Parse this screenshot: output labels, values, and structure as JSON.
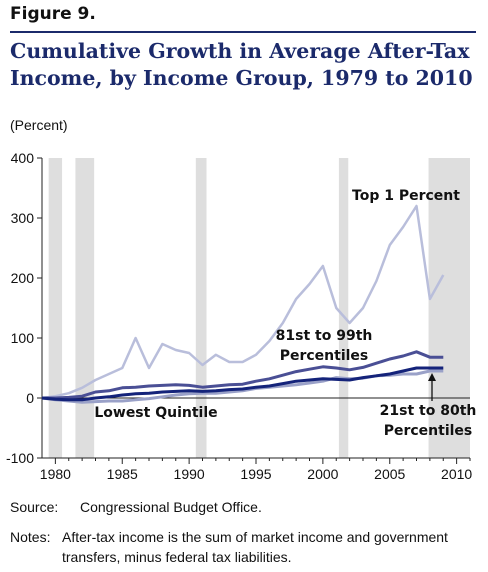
{
  "figure_label": "Figure 9.",
  "units_label": "(Percent)",
  "source_label": "Source:",
  "source_text": "Congressional Budget Office.",
  "notes_label": "Notes:",
  "notes_text": "After-tax income is the sum of market income and government transfers, minus federal tax liabilities.",
  "colors": {
    "title": "#1b2a6b",
    "recession_shading": "#dedede",
    "top1": "#b9bedb",
    "p81_99": "#4a4f95",
    "p21_80": "#14237a",
    "lowest": "#9aa1c8"
  },
  "chart_data": {
    "type": "line",
    "title": "Cumulative Growth in Average After-Tax Income, by Income Group, 1979 to 2010",
    "ylabel": "(Percent)",
    "xlim": [
      1979,
      2011
    ],
    "ylim": [
      -100,
      400
    ],
    "xticks": [
      1980,
      1985,
      1990,
      1995,
      2000,
      2005,
      2010
    ],
    "yticks": [
      -100,
      0,
      100,
      200,
      300,
      400
    ],
    "grid": false,
    "shaded_periods": [
      [
        1979.5,
        1980.5
      ],
      [
        1981.5,
        1982.9
      ],
      [
        1990.5,
        1991.3
      ],
      [
        2001.2,
        2001.9
      ],
      [
        2007.9,
        2011
      ]
    ],
    "series": [
      {
        "name": "Top 1 Percent",
        "x": [
          1979,
          1980,
          1981,
          1982,
          1983,
          1984,
          1985,
          1986,
          1987,
          1988,
          1989,
          1990,
          1991,
          1992,
          1993,
          1994,
          1995,
          1996,
          1997,
          1998,
          1999,
          2000,
          2001,
          2002,
          2003,
          2004,
          2005,
          2006,
          2007,
          2008,
          2009
        ],
        "values": [
          0,
          3,
          8,
          17,
          30,
          40,
          50,
          100,
          50,
          90,
          80,
          75,
          55,
          72,
          60,
          60,
          72,
          95,
          125,
          165,
          190,
          220,
          150,
          125,
          150,
          195,
          255,
          285,
          320,
          165,
          205
        ]
      },
      {
        "name": "81st to 99th Percentiles",
        "x": [
          1979,
          1980,
          1981,
          1982,
          1983,
          1984,
          1985,
          1986,
          1987,
          1988,
          1989,
          1990,
          1991,
          1992,
          1993,
          1994,
          1995,
          1996,
          1997,
          1998,
          1999,
          2000,
          2001,
          2002,
          2003,
          2004,
          2005,
          2006,
          2007,
          2008,
          2009
        ],
        "values": [
          0,
          0,
          1,
          3,
          10,
          12,
          17,
          18,
          20,
          21,
          22,
          21,
          18,
          20,
          22,
          23,
          28,
          32,
          38,
          44,
          48,
          52,
          50,
          47,
          51,
          58,
          65,
          70,
          77,
          68,
          68
        ]
      },
      {
        "name": "21st to 80th Percentiles",
        "x": [
          1979,
          1980,
          1981,
          1982,
          1983,
          1984,
          1985,
          1986,
          1987,
          1988,
          1989,
          1990,
          1991,
          1992,
          1993,
          1994,
          1995,
          1996,
          1997,
          1998,
          1999,
          2000,
          2001,
          2002,
          2003,
          2004,
          2005,
          2006,
          2007,
          2008,
          2009
        ],
        "values": [
          0,
          -2,
          -3,
          -3,
          0,
          2,
          5,
          7,
          8,
          10,
          11,
          12,
          11,
          12,
          14,
          15,
          18,
          20,
          24,
          28,
          30,
          32,
          31,
          30,
          34,
          37,
          40,
          45,
          50,
          50,
          50
        ]
      },
      {
        "name": "Lowest Quintile",
        "x": [
          1979,
          1980,
          1981,
          1982,
          1983,
          1984,
          1985,
          1986,
          1987,
          1988,
          1989,
          1990,
          1991,
          1992,
          1993,
          1994,
          1995,
          1996,
          1997,
          1998,
          1999,
          2000,
          2001,
          2002,
          2003,
          2004,
          2005,
          2006,
          2007,
          2008,
          2009
        ],
        "values": [
          0,
          -3,
          -5,
          -7,
          -6,
          -5,
          -5,
          -3,
          -1,
          2,
          5,
          7,
          8,
          8,
          10,
          12,
          16,
          18,
          20,
          22,
          25,
          28,
          34,
          32,
          33,
          37,
          38,
          40,
          40,
          45,
          45
        ]
      }
    ]
  }
}
